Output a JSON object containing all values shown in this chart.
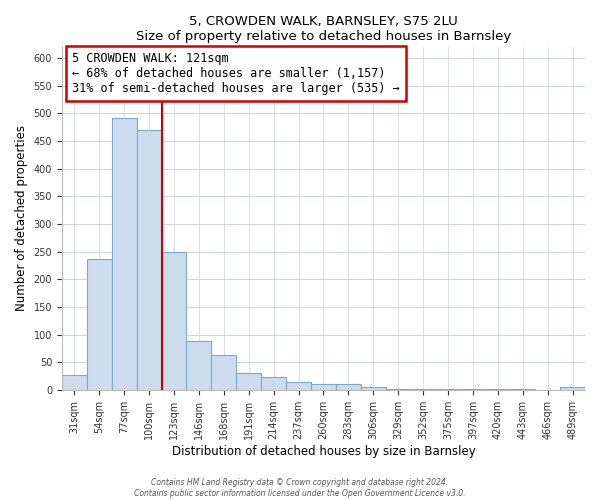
{
  "title": "5, CROWDEN WALK, BARNSLEY, S75 2LU",
  "subtitle": "Size of property relative to detached houses in Barnsley",
  "xlabel": "Distribution of detached houses by size in Barnsley",
  "ylabel": "Number of detached properties",
  "bar_labels": [
    "31sqm",
    "54sqm",
    "77sqm",
    "100sqm",
    "123sqm",
    "146sqm",
    "168sqm",
    "191sqm",
    "214sqm",
    "237sqm",
    "260sqm",
    "283sqm",
    "306sqm",
    "329sqm",
    "352sqm",
    "375sqm",
    "397sqm",
    "420sqm",
    "443sqm",
    "466sqm",
    "489sqm"
  ],
  "bar_values": [
    26,
    237,
    491,
    469,
    250,
    88,
    63,
    31,
    23,
    14,
    11,
    10,
    5,
    2,
    1,
    1,
    1,
    1,
    1,
    0,
    5
  ],
  "bar_color": "#ccdcee",
  "bar_edge_color": "#7aaacb",
  "annotation_title": "5 CROWDEN WALK: 121sqm",
  "annotation_line1": "← 68% of detached houses are smaller (1,157)",
  "annotation_line2": "31% of semi-detached houses are larger (535) →",
  "annotation_box_color": "white",
  "annotation_box_edge_color": "#cc0000",
  "ref_line_color": "#cc0000",
  "ylim": [
    0,
    620
  ],
  "yticks": [
    0,
    50,
    100,
    150,
    200,
    250,
    300,
    350,
    400,
    450,
    500,
    550,
    600
  ],
  "bg_color": "#ffffff",
  "grid_color": "#c8d4e0",
  "footer_line1": "Contains HM Land Registry data © Crown copyright and database right 2024.",
  "footer_line2": "Contains public sector information licensed under the Open Government Licence v3.0."
}
